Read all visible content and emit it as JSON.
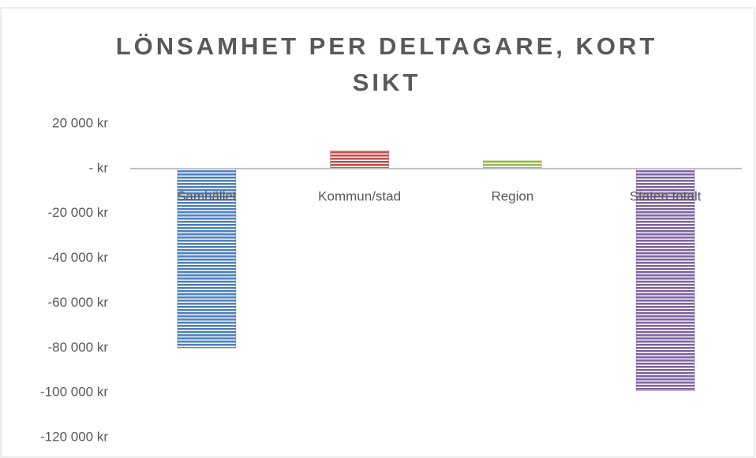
{
  "chart_data": {
    "type": "bar",
    "title": "LÖNSAMHET PER DELTAGARE, KORT SIKT",
    "categories": [
      "Samhället",
      "Kommun/stad",
      "Region",
      "Staten totalt"
    ],
    "values": [
      -80000,
      8000,
      3500,
      -99000
    ],
    "colors": [
      "#4f81bd",
      "#c0504d",
      "#9bbb59",
      "#8064a2"
    ],
    "ylim": [
      -120000,
      20000
    ],
    "yticks": [
      {
        "value": 20000,
        "label": "20 000 kr"
      },
      {
        "value": 0,
        "label": "-   kr"
      },
      {
        "value": -20000,
        "label": "-20 000 kr"
      },
      {
        "value": -40000,
        "label": "-40 000 kr"
      },
      {
        "value": -60000,
        "label": "-60 000 kr"
      },
      {
        "value": -80000,
        "label": "-80 000 kr"
      },
      {
        "value": -100000,
        "label": "-100 000 kr"
      },
      {
        "value": -120000,
        "label": "-120 000 kr"
      }
    ],
    "grid": false
  }
}
